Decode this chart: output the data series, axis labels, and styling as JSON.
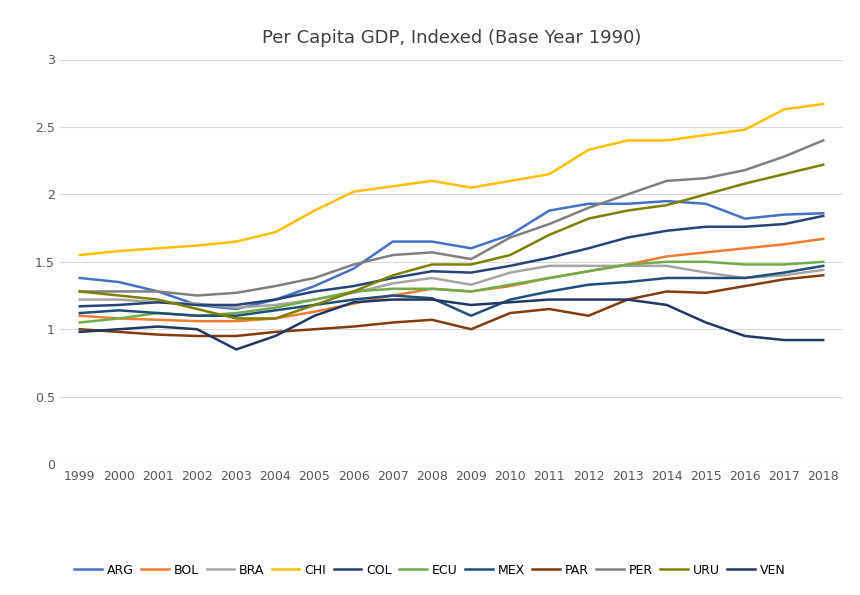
{
  "title": "Per Capita GDP, Indexed (Base Year 1990)",
  "years": [
    1999,
    2000,
    2001,
    2002,
    2003,
    2004,
    2005,
    2006,
    2007,
    2008,
    2009,
    2010,
    2011,
    2012,
    2013,
    2014,
    2015,
    2016,
    2017,
    2018
  ],
  "series": {
    "ARG": [
      1.38,
      1.35,
      1.28,
      1.18,
      1.15,
      1.22,
      1.32,
      1.45,
      1.65,
      1.65,
      1.6,
      1.7,
      1.88,
      1.93,
      1.93,
      1.95,
      1.93,
      1.82,
      1.85,
      1.86
    ],
    "BOL": [
      1.1,
      1.08,
      1.07,
      1.06,
      1.06,
      1.08,
      1.13,
      1.19,
      1.25,
      1.3,
      1.28,
      1.32,
      1.38,
      1.43,
      1.48,
      1.54,
      1.57,
      1.6,
      1.63,
      1.67
    ],
    "BRA": [
      1.22,
      1.22,
      1.2,
      1.19,
      1.16,
      1.18,
      1.22,
      1.27,
      1.34,
      1.38,
      1.33,
      1.42,
      1.47,
      1.47,
      1.47,
      1.47,
      1.42,
      1.38,
      1.4,
      1.44
    ],
    "CHI": [
      1.55,
      1.58,
      1.6,
      1.62,
      1.65,
      1.72,
      1.88,
      2.02,
      2.06,
      2.1,
      2.05,
      2.1,
      2.15,
      2.33,
      2.4,
      2.4,
      2.44,
      2.48,
      2.63,
      2.67
    ],
    "COL": [
      1.17,
      1.18,
      1.2,
      1.18,
      1.18,
      1.22,
      1.28,
      1.32,
      1.38,
      1.43,
      1.42,
      1.47,
      1.53,
      1.6,
      1.68,
      1.73,
      1.76,
      1.76,
      1.78,
      1.84
    ],
    "ECU": [
      1.05,
      1.08,
      1.12,
      1.1,
      1.12,
      1.16,
      1.22,
      1.28,
      1.3,
      1.3,
      1.28,
      1.33,
      1.38,
      1.43,
      1.48,
      1.5,
      1.5,
      1.48,
      1.48,
      1.5
    ],
    "MEX": [
      1.12,
      1.14,
      1.12,
      1.1,
      1.1,
      1.14,
      1.18,
      1.22,
      1.25,
      1.23,
      1.1,
      1.22,
      1.28,
      1.33,
      1.35,
      1.38,
      1.38,
      1.38,
      1.42,
      1.47
    ],
    "PAR": [
      1.0,
      0.98,
      0.96,
      0.95,
      0.95,
      0.98,
      1.0,
      1.02,
      1.05,
      1.07,
      1.0,
      1.12,
      1.15,
      1.1,
      1.22,
      1.28,
      1.27,
      1.32,
      1.37,
      1.4
    ],
    "PER": [
      1.28,
      1.28,
      1.28,
      1.25,
      1.27,
      1.32,
      1.38,
      1.48,
      1.55,
      1.57,
      1.52,
      1.68,
      1.78,
      1.9,
      2.0,
      2.1,
      2.12,
      2.18,
      2.28,
      2.4
    ],
    "URU": [
      1.28,
      1.25,
      1.22,
      1.15,
      1.08,
      1.08,
      1.18,
      1.28,
      1.4,
      1.48,
      1.48,
      1.55,
      1.7,
      1.82,
      1.88,
      1.92,
      2.0,
      2.08,
      2.15,
      2.22
    ],
    "VEN": [
      0.98,
      1.0,
      1.02,
      1.0,
      0.85,
      0.95,
      1.1,
      1.2,
      1.22,
      1.22,
      1.18,
      1.2,
      1.22,
      1.22,
      1.22,
      1.18,
      1.05,
      0.95,
      0.92,
      0.92
    ]
  },
  "colors": {
    "ARG": "#4472C4",
    "BOL": "#ED7D31",
    "BRA": "#A5A5A5",
    "CHI": "#FFC000",
    "COL": "#264478",
    "ECU": "#70AD47",
    "MEX": "#1F4E79",
    "PAR": "#843C0C",
    "PER": "#808080",
    "URU": "#7F7F00",
    "VEN": "#1F3864"
  },
  "ylim": [
    0,
    3.0
  ],
  "yticks": [
    0,
    0.5,
    1.0,
    1.5,
    2.0,
    2.5,
    3.0
  ],
  "yticklabels": [
    "0",
    "0.5",
    "1",
    "1.5",
    "2",
    "2.5",
    "3"
  ],
  "background_color": "#FFFFFF",
  "plot_bg_color": "#FFFFFF",
  "grid_color": "#D9D9D9",
  "title_fontsize": 13,
  "tick_fontsize": 9,
  "legend_fontsize": 9,
  "linewidth": 1.8
}
